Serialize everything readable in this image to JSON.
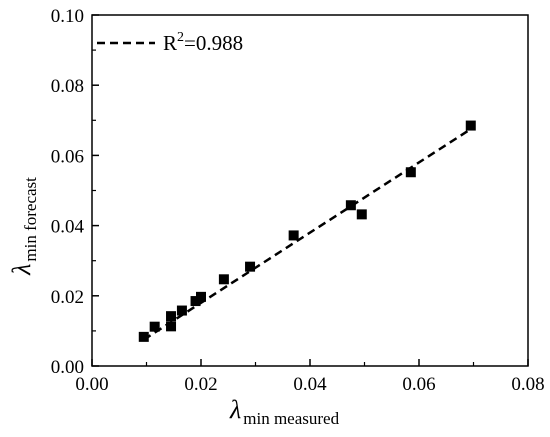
{
  "chart_data": {
    "type": "scatter",
    "x_label": {
      "symbol": "λ",
      "subscript": "min measured"
    },
    "y_label": {
      "symbol": "λ",
      "subscript": "min forecast"
    },
    "xlim": [
      0.0,
      0.08
    ],
    "ylim": [
      0.0,
      0.1
    ],
    "x_ticks": [
      "0.00",
      "0.02",
      "0.04",
      "0.06",
      "0.08"
    ],
    "y_ticks": [
      "0.00",
      "0.02",
      "0.04",
      "0.06",
      "0.08",
      "0.10"
    ],
    "grid": false,
    "legend": {
      "placement": "top-left",
      "label_prefix": "R",
      "label_sup": "2",
      "label_suffix": "=0.988"
    },
    "points": [
      {
        "x": 0.0095,
        "y": 0.0083
      },
      {
        "x": 0.0115,
        "y": 0.0112
      },
      {
        "x": 0.0145,
        "y": 0.0113
      },
      {
        "x": 0.0145,
        "y": 0.0142
      },
      {
        "x": 0.0165,
        "y": 0.0158
      },
      {
        "x": 0.019,
        "y": 0.0185
      },
      {
        "x": 0.02,
        "y": 0.0197
      },
      {
        "x": 0.0242,
        "y": 0.0247
      },
      {
        "x": 0.029,
        "y": 0.0283
      },
      {
        "x": 0.037,
        "y": 0.0372
      },
      {
        "x": 0.0475,
        "y": 0.0458
      },
      {
        "x": 0.0495,
        "y": 0.0432
      },
      {
        "x": 0.0585,
        "y": 0.0552
      },
      {
        "x": 0.0695,
        "y": 0.0685
      }
    ],
    "fit_line": {
      "x": [
        0.0095,
        0.0695
      ],
      "y": [
        0.0075,
        0.0675
      ],
      "style": "dashed"
    },
    "colors": {
      "marker": "#000000",
      "line": "#000000",
      "background": "#ffffff"
    }
  }
}
